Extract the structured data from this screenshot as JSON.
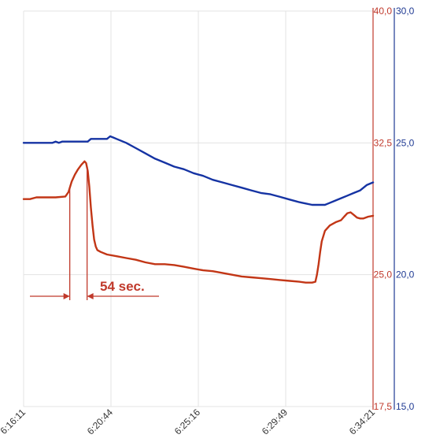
{
  "chart_data": {
    "type": "line",
    "title": "",
    "x_ticks": [
      "6:16:11",
      "6:20:44",
      "6:25:16",
      "6:29:49",
      "6:34:21"
    ],
    "x_range": [
      0,
      1090
    ],
    "axis_left_ticks": [
      "40,0",
      "32,5",
      "25,0",
      "17,5"
    ],
    "axis_left_range": [
      17.5,
      40.0
    ],
    "axis_left_color": "#c0392b",
    "axis_right_ticks": [
      "30,0",
      "25,0",
      "20,0",
      "15,0"
    ],
    "axis_right_range": [
      15.0,
      30.0
    ],
    "axis_right_color": "#1f3a93",
    "grid": true,
    "series": [
      {
        "axis": "right",
        "color": "#1533a3",
        "points": [
          [
            0,
            25.0
          ],
          [
            90,
            25.0
          ],
          [
            100,
            25.05
          ],
          [
            110,
            25.0
          ],
          [
            120,
            25.05
          ],
          [
            130,
            25.05
          ],
          [
            200,
            25.05
          ],
          [
            210,
            25.15
          ],
          [
            260,
            25.15
          ],
          [
            270,
            25.25
          ],
          [
            280,
            25.2
          ],
          [
            290,
            25.15
          ],
          [
            320,
            25.0
          ],
          [
            350,
            24.8
          ],
          [
            380,
            24.6
          ],
          [
            410,
            24.4
          ],
          [
            440,
            24.25
          ],
          [
            470,
            24.1
          ],
          [
            500,
            24.0
          ],
          [
            530,
            23.85
          ],
          [
            560,
            23.75
          ],
          [
            590,
            23.6
          ],
          [
            620,
            23.5
          ],
          [
            650,
            23.4
          ],
          [
            680,
            23.3
          ],
          [
            710,
            23.2
          ],
          [
            740,
            23.1
          ],
          [
            770,
            23.05
          ],
          [
            800,
            22.95
          ],
          [
            830,
            22.85
          ],
          [
            860,
            22.75
          ],
          [
            880,
            22.7
          ],
          [
            900,
            22.65
          ],
          [
            920,
            22.65
          ],
          [
            940,
            22.65
          ],
          [
            950,
            22.7
          ],
          [
            970,
            22.8
          ],
          [
            990,
            22.9
          ],
          [
            1010,
            23.0
          ],
          [
            1030,
            23.1
          ],
          [
            1050,
            23.2
          ],
          [
            1070,
            23.4
          ],
          [
            1090,
            23.5
          ]
        ]
      },
      {
        "axis": "left",
        "color": "#c23616",
        "points": [
          [
            0,
            29.3
          ],
          [
            20,
            29.3
          ],
          [
            40,
            29.4
          ],
          [
            100,
            29.4
          ],
          [
            130,
            29.45
          ],
          [
            140,
            29.7
          ],
          [
            150,
            30.3
          ],
          [
            160,
            30.7
          ],
          [
            170,
            31.0
          ],
          [
            180,
            31.25
          ],
          [
            190,
            31.45
          ],
          [
            195,
            31.35
          ],
          [
            200,
            30.9
          ],
          [
            205,
            30.0
          ],
          [
            210,
            28.8
          ],
          [
            215,
            27.8
          ],
          [
            220,
            27.0
          ],
          [
            225,
            26.6
          ],
          [
            230,
            26.4
          ],
          [
            240,
            26.3
          ],
          [
            260,
            26.15
          ],
          [
            290,
            26.05
          ],
          [
            320,
            25.95
          ],
          [
            350,
            25.85
          ],
          [
            380,
            25.7
          ],
          [
            410,
            25.6
          ],
          [
            440,
            25.6
          ],
          [
            470,
            25.55
          ],
          [
            500,
            25.45
          ],
          [
            530,
            25.35
          ],
          [
            560,
            25.25
          ],
          [
            590,
            25.2
          ],
          [
            620,
            25.1
          ],
          [
            650,
            25.0
          ],
          [
            680,
            24.9
          ],
          [
            710,
            24.85
          ],
          [
            740,
            24.8
          ],
          [
            770,
            24.75
          ],
          [
            800,
            24.7
          ],
          [
            830,
            24.65
          ],
          [
            860,
            24.6
          ],
          [
            880,
            24.55
          ],
          [
            900,
            24.55
          ],
          [
            910,
            24.6
          ],
          [
            915,
            25.0
          ],
          [
            920,
            25.6
          ],
          [
            925,
            26.3
          ],
          [
            930,
            26.9
          ],
          [
            940,
            27.5
          ],
          [
            955,
            27.8
          ],
          [
            975,
            28.0
          ],
          [
            990,
            28.1
          ],
          [
            1000,
            28.3
          ],
          [
            1010,
            28.5
          ],
          [
            1020,
            28.55
          ],
          [
            1030,
            28.4
          ],
          [
            1040,
            28.25
          ],
          [
            1050,
            28.2
          ],
          [
            1060,
            28.2
          ],
          [
            1075,
            28.3
          ],
          [
            1090,
            28.35
          ]
        ]
      }
    ],
    "annotation": {
      "label": "54 sec.",
      "color": "#c0392b",
      "start_x": 144,
      "end_x": 198
    }
  }
}
